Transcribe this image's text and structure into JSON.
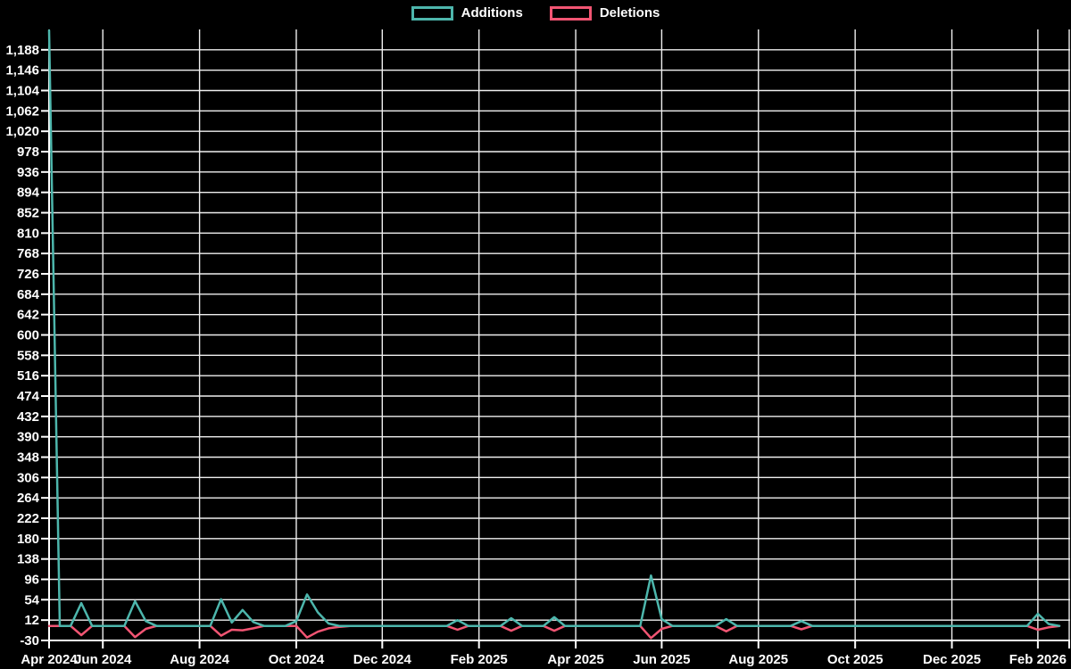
{
  "page": {
    "background": "#000000",
    "text_color": "#ffffff"
  },
  "legend": {
    "position": "top-center",
    "items": [
      {
        "label": "Additions",
        "color": "#4db6ac"
      },
      {
        "label": "Deletions",
        "color": "#f25573"
      }
    ]
  },
  "colors": {
    "grid": "#efefef",
    "axis": "#ffffff",
    "tick": "#ffffff"
  },
  "chart_data": {
    "type": "line",
    "title": "",
    "xlabel": "",
    "ylabel": "",
    "grid": true,
    "legend_position": "top-center",
    "x_unit": "week",
    "weeks_total": 95,
    "x_range_description": "weekly points from Apr 2024 to Feb 2026",
    "x_tick_labels": [
      {
        "week": 0,
        "label": "Apr 2024"
      },
      {
        "week": 5,
        "label": "Jun 2024"
      },
      {
        "week": 14,
        "label": "Aug 2024"
      },
      {
        "week": 23,
        "label": "Oct 2024"
      },
      {
        "week": 31,
        "label": "Dec 2024"
      },
      {
        "week": 40,
        "label": "Feb 2025"
      },
      {
        "week": 49,
        "label": "Apr 2025"
      },
      {
        "week": 57,
        "label": "Jun 2025"
      },
      {
        "week": 66,
        "label": "Aug 2025"
      },
      {
        "week": 75,
        "label": "Oct 2025"
      },
      {
        "week": 84,
        "label": "Dec 2025"
      },
      {
        "week": 92,
        "label": "Feb 2026"
      }
    ],
    "y_axis": {
      "min": -30,
      "max": 1230,
      "tick_step": 42,
      "first_label": -30,
      "last_label": 1188
    },
    "y_tick_labels": [
      "-30",
      "12",
      "54",
      "96",
      "138",
      "180",
      "222",
      "264",
      "306",
      "348",
      "390",
      "432",
      "474",
      "516",
      "558",
      "600",
      "642",
      "684",
      "726",
      "768",
      "810",
      "852",
      "894",
      "936",
      "978",
      "1,020",
      "1,062",
      "1,104",
      "1,146",
      "1,188"
    ],
    "series": [
      {
        "name": "Additions",
        "color": "#4db6ac",
        "values": [
          1228,
          0,
          0,
          47,
          0,
          0,
          0,
          0,
          51,
          10,
          0,
          0,
          0,
          0,
          0,
          0,
          55,
          7,
          33,
          8,
          0,
          0,
          0,
          10,
          65,
          28,
          5,
          0,
          0,
          0,
          0,
          0,
          0,
          0,
          0,
          0,
          0,
          0,
          12,
          0,
          0,
          0,
          0,
          16,
          0,
          0,
          0,
          18,
          0,
          0,
          0,
          0,
          0,
          0,
          0,
          0,
          104,
          14,
          0,
          0,
          0,
          0,
          0,
          14,
          0,
          0,
          0,
          0,
          0,
          0,
          10,
          0,
          0,
          0,
          0,
          0,
          0,
          0,
          0,
          0,
          0,
          0,
          0,
          0,
          0,
          0,
          0,
          0,
          0,
          0,
          0,
          0,
          25,
          4,
          0
        ]
      },
      {
        "name": "Deletions",
        "color": "#f25573",
        "values": [
          0,
          0,
          0,
          -19,
          0,
          0,
          0,
          0,
          -23,
          -6,
          0,
          0,
          0,
          0,
          0,
          0,
          -20,
          -8,
          -9,
          -5,
          0,
          0,
          0,
          0,
          -24,
          -12,
          -5,
          -2,
          0,
          0,
          0,
          0,
          0,
          0,
          0,
          0,
          0,
          0,
          -8,
          0,
          0,
          0,
          0,
          -10,
          0,
          0,
          0,
          -10,
          0,
          0,
          0,
          0,
          0,
          0,
          0,
          0,
          -25,
          -6,
          0,
          0,
          0,
          0,
          0,
          -11,
          0,
          0,
          0,
          0,
          0,
          0,
          -7,
          0,
          0,
          0,
          0,
          0,
          0,
          0,
          0,
          0,
          0,
          0,
          0,
          0,
          0,
          0,
          0,
          0,
          0,
          0,
          0,
          0,
          -8,
          -3,
          0
        ]
      }
    ]
  }
}
